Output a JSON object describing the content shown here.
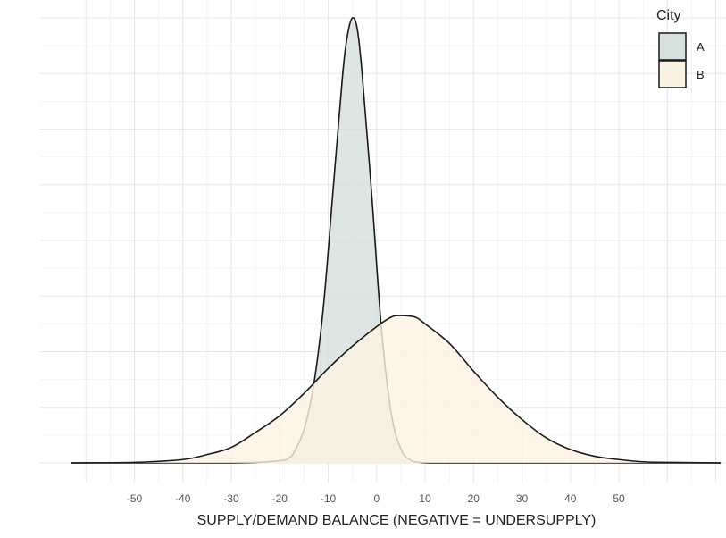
{
  "chart_data": {
    "type": "area",
    "chart_subtype": "density",
    "xlabel": "SUPPLY/DEMAND BALANCE (NEGATIVE = UNDERSUPPLY)",
    "ylabel": "",
    "xlim": [
      -63,
      71
    ],
    "ylim": [
      0,
      0.08
    ],
    "x_ticks": [
      -50,
      -40,
      -30,
      -20,
      -10,
      0,
      10,
      20,
      30,
      40,
      50
    ],
    "x_tick_labels": [
      "-50",
      "-40",
      "-30",
      "-20",
      "-10",
      "0",
      "10",
      "20",
      "30",
      "40",
      "50"
    ],
    "grid": true,
    "legend": {
      "title": "City",
      "position": "top-right"
    },
    "series": [
      {
        "name": "A",
        "fill": "#d6e0dd",
        "stroke": "#1a1a1a",
        "x": [
          -63,
          -30,
          -20,
          -18,
          -17,
          -15,
          -13,
          -11,
          -9,
          -7,
          -6,
          -5,
          -4,
          -3,
          -1,
          1,
          3,
          5,
          7,
          9,
          11,
          15,
          20,
          30,
          71
        ],
        "y": [
          0,
          0.0,
          0.0004,
          0.001,
          0.002,
          0.006,
          0.014,
          0.028,
          0.049,
          0.07,
          0.077,
          0.08,
          0.078,
          0.07,
          0.048,
          0.024,
          0.009,
          0.0025,
          0.0005,
          0.0001,
          0,
          0,
          0,
          0,
          0
        ]
      },
      {
        "name": "B",
        "fill": "#fbf3e2",
        "stroke": "#1a1a1a",
        "x": [
          -63,
          -50,
          -40,
          -35,
          -30,
          -25,
          -20,
          -15,
          -10,
          -5,
          0,
          3,
          5,
          8,
          10,
          15,
          20,
          25,
          30,
          35,
          40,
          45,
          50,
          55,
          60,
          71
        ],
        "y": [
          0,
          0.0001,
          0.0006,
          0.0015,
          0.0028,
          0.0055,
          0.0085,
          0.0125,
          0.017,
          0.021,
          0.0245,
          0.0262,
          0.0265,
          0.0262,
          0.025,
          0.0215,
          0.0165,
          0.0118,
          0.0078,
          0.0045,
          0.0024,
          0.0012,
          0.0006,
          0.0002,
          0.0001,
          0
        ]
      }
    ]
  }
}
